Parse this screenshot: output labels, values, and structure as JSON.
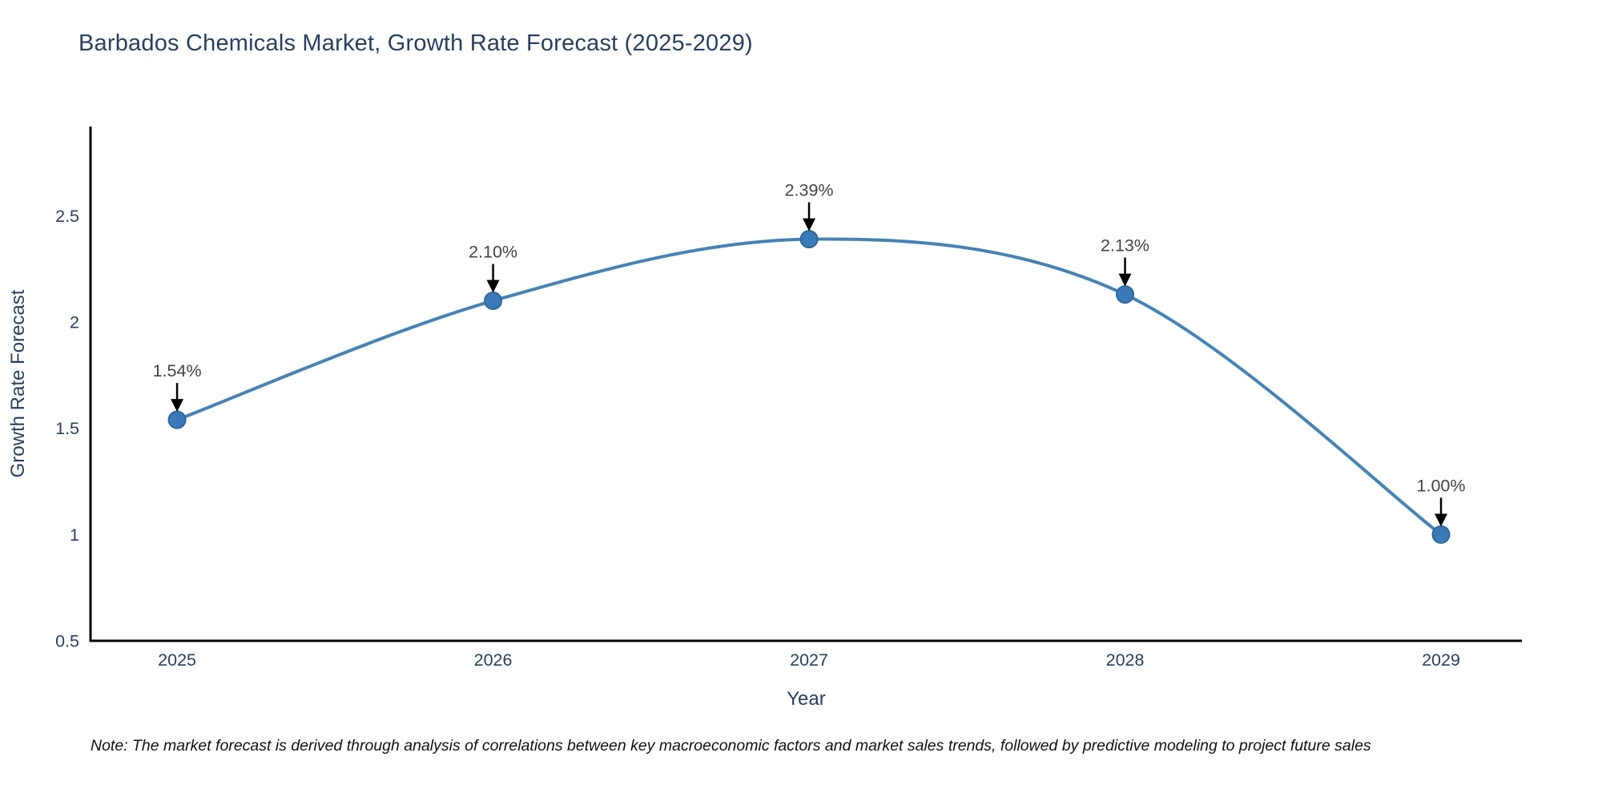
{
  "chart_data": {
    "type": "line",
    "curve": "spline",
    "title": "Barbados Chemicals Market, Growth Rate Forecast (2025-2029)",
    "xlabel": "Year",
    "ylabel": "Growth Rate Forecast",
    "x": [
      2025,
      2026,
      2027,
      2028,
      2029
    ],
    "values": [
      1.54,
      2.1,
      2.39,
      2.13,
      1.0
    ],
    "point_labels": [
      "1.54%",
      "2.10%",
      "2.39%",
      "2.13%",
      "1.00%"
    ],
    "x_tick_labels": [
      "2025",
      "2026",
      "2027",
      "2028",
      "2029"
    ],
    "y_ticks": [
      0.5,
      1,
      1.5,
      2,
      2.5
    ],
    "y_tick_labels": [
      "0.5",
      "1",
      "1.5",
      "2",
      "2.5"
    ],
    "xlim": [
      2024.726,
      2029.256
    ],
    "ylim": [
      0.5,
      2.92
    ],
    "grid": false,
    "legend": null,
    "colors": {
      "line": "#4682b4",
      "marker_fill": "#3a7ab8",
      "marker_edge": "#2f6699",
      "axis_line": "#000000",
      "title_text": "#2a3f5f",
      "tick_text": "#2a3f5f",
      "axis_title_text": "#2a3f5f",
      "annotation_text": "#444444",
      "annotation_arrow": "#000000"
    }
  },
  "note": {
    "text": "Note: The market forecast is derived through analysis of correlations between key macroeconomic factors and market sales trends, followed by predictive modeling to project future sales"
  }
}
